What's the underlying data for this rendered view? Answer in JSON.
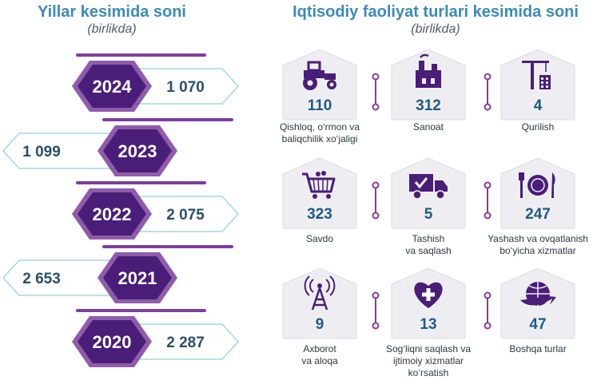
{
  "left": {
    "title": "Yillar kesimida soni",
    "subtitle": "(birlikda)"
  },
  "right": {
    "title": "Iqtisodiy faoliyat turlari kesimida soni",
    "subtitle": "(birlikda)"
  },
  "chart_data": [
    {
      "type": "bar",
      "title": "Yillar kesimida soni",
      "subtitle": "(birlikda)",
      "categories": [
        "2024",
        "2023",
        "2022",
        "2021",
        "2020"
      ],
      "values": [
        1070,
        1099,
        2075,
        2653,
        2287
      ],
      "value_labels": [
        "1 070",
        "1 099",
        "2 075",
        "2 653",
        "2 287"
      ]
    },
    {
      "type": "table",
      "title": "Iqtisodiy faoliyat turlari kesimida soni",
      "subtitle": "(birlikda)",
      "categories": [
        {
          "value": "110",
          "label": [
            "Qishloq, o‘rmon va",
            "baliqchilik xo‘jaligi"
          ],
          "icon": "tractor-icon"
        },
        {
          "value": "312",
          "label": [
            "Sanoat"
          ],
          "icon": "factory-icon"
        },
        {
          "value": "4",
          "label": [
            "Qurilish"
          ],
          "icon": "crane-icon"
        },
        {
          "value": "323",
          "label": [
            "Savdo"
          ],
          "icon": "shopping-cart-icon"
        },
        {
          "value": "5",
          "label": [
            "Tashish",
            "va saqlash"
          ],
          "icon": "truck-icon"
        },
        {
          "value": "247",
          "label": [
            "Yashash va ovqatlanish",
            "bo‘yicha xizmatlar"
          ],
          "icon": "plate-cutlery-icon"
        },
        {
          "value": "9",
          "label": [
            "Axborot",
            "va aloqa"
          ],
          "icon": "antenna-icon"
        },
        {
          "value": "13",
          "label": [
            "Sog‘liqni saqlash va",
            "ijtimoiy xizmatlar",
            "ko‘rsatish"
          ],
          "icon": "heart-plus-icon"
        },
        {
          "value": "47",
          "label": [
            "Boshqa turlar"
          ],
          "icon": "globe-icon"
        }
      ]
    }
  ],
  "colors": {
    "title": "#3c8bb8",
    "hex_fill": "#4a1e78",
    "hex_ring": "#7b3f9e",
    "value_text": "#2b4e68",
    "arrow_stroke": "#a6d6e3",
    "card_fill": "#eeeef2",
    "card_value": "#1f5a82",
    "icon": "#4a1e78",
    "connector": "#8a3c8e"
  }
}
